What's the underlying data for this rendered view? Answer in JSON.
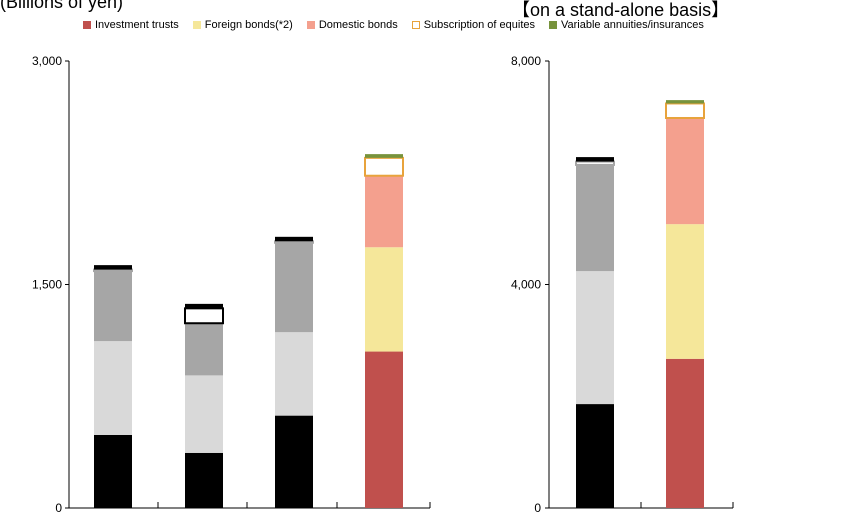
{
  "header": {
    "left_text": "(Billions of yen)",
    "right_text": "【on a stand-alone basis】"
  },
  "legend": {
    "items": [
      {
        "label": "Investment trusts",
        "color": "#c0504d",
        "outline": false
      },
      {
        "label": "Foreign bonds(*2)",
        "color": "#f5e79a",
        "outline": false
      },
      {
        "label": "Domestic bonds",
        "color": "#f4a08e",
        "outline": false
      },
      {
        "label": "Subscription of equites",
        "color": "#e8a33c",
        "outline": true
      },
      {
        "label": "Variable annuities/insurances",
        "color": "#77933c",
        "outline": false
      }
    ]
  },
  "chart_data": [
    {
      "type": "bar",
      "stacked": true,
      "ylim": [
        0,
        3000
      ],
      "yticks": [
        "0",
        "1,500",
        "3,000"
      ],
      "categories": [
        "",
        "",
        "",
        ""
      ],
      "series": [
        {
          "values": [
            490,
            370,
            620,
            1050
          ],
          "colors": [
            "#000000",
            "#000000",
            "#000000",
            "#c0504d"
          ]
        },
        {
          "values": [
            630,
            520,
            560,
            700
          ],
          "colors": [
            "#d9d9d9",
            "#d9d9d9",
            "#d9d9d9",
            "#f5e79a"
          ]
        },
        {
          "values": [
            470,
            350,
            600,
            480
          ],
          "colors": [
            "#a6a6a6",
            "#a6a6a6",
            "#a6a6a6",
            "#f4a08e"
          ]
        },
        {
          "values": [
            10,
            100,
            10,
            120
          ],
          "colors": [
            "#ffffff",
            "#ffffff",
            "#ffffff",
            "#ffffff"
          ],
          "outline": [
            "#a6a6a6",
            "#000000",
            "#a6a6a6",
            "#e8a33c"
          ]
        },
        {
          "values": [
            30,
            30,
            30,
            25
          ],
          "colors": [
            "#000000",
            "#000000",
            "#000000",
            "#77933c"
          ]
        }
      ]
    },
    {
      "type": "bar",
      "stacked": true,
      "ylim": [
        0,
        8000
      ],
      "yticks": [
        "0",
        "4,000",
        "8,000"
      ],
      "categories": [
        "",
        ""
      ],
      "series": [
        {
          "values": [
            1860,
            2670
          ],
          "colors": [
            "#000000",
            "#c0504d"
          ]
        },
        {
          "values": [
            2380,
            2410
          ],
          "colors": [
            "#d9d9d9",
            "#f5e79a"
          ]
        },
        {
          "values": [
            1900,
            1900
          ],
          "colors": [
            "#a6a6a6",
            "#f4a08e"
          ]
        },
        {
          "values": [
            60,
            260
          ],
          "colors": [
            "#ffffff",
            "#ffffff"
          ],
          "outline": [
            "#a6a6a6",
            "#e8a33c"
          ]
        },
        {
          "values": [
            80,
            60
          ],
          "colors": [
            "#000000",
            "#77933c"
          ]
        }
      ]
    }
  ]
}
